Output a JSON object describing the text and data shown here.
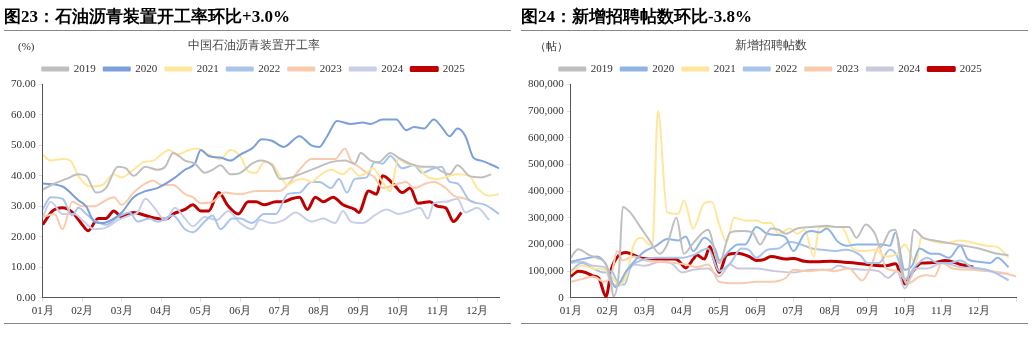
{
  "chart_data": [
    {
      "type": "line",
      "title": "图23：石油沥青装置开工率环比+3.0%",
      "subtitle": "中国石油沥青装置开工率",
      "ylabel": "(%)",
      "legend": "top",
      "marker": "none",
      "line_style": "solid",
      "grid": false,
      "xlim": [
        1,
        12.55
      ],
      "xticks": [
        {
          "value": 1,
          "label": "01月"
        },
        {
          "value": 2,
          "label": "02月"
        },
        {
          "value": 3,
          "label": "03月"
        },
        {
          "value": 4,
          "label": "04月"
        },
        {
          "value": 5,
          "label": "05月"
        },
        {
          "value": 6,
          "label": "06月"
        },
        {
          "value": 7,
          "label": "07月"
        },
        {
          "value": 8,
          "label": "08月"
        },
        {
          "value": 9,
          "label": "09月"
        },
        {
          "value": 10,
          "label": "10月"
        },
        {
          "value": 11,
          "label": "11月"
        },
        {
          "value": 12,
          "label": "12月"
        }
      ],
      "ylim": [
        0,
        70
      ],
      "yticks": [
        {
          "value": 0,
          "label": "0.00"
        },
        {
          "value": 10,
          "label": "10.00"
        },
        {
          "value": 20,
          "label": "20.00"
        },
        {
          "value": 30,
          "label": "30.00"
        },
        {
          "value": 40,
          "label": "40.00"
        },
        {
          "value": 50,
          "label": "50.00"
        },
        {
          "value": 60,
          "label": "60.00"
        },
        {
          "value": 70,
          "label": "70.00"
        }
      ],
      "series": [
        {
          "name": "2019",
          "color": "#bfbfbf",
          "x": [
            1,
            1.3,
            1.6,
            1.9,
            2.1,
            2.35,
            2.6,
            2.9,
            3.1,
            3.3,
            3.6,
            3.9,
            4.1,
            4.3,
            4.6,
            4.85,
            5.1,
            5.3,
            5.5,
            5.75,
            6,
            6.3,
            6.5,
            6.8,
            7,
            7.3,
            7.6,
            7.9,
            8.3,
            8.65,
            8.9,
            9.05,
            9.3,
            9.5,
            9.8,
            10,
            10.3,
            10.6,
            10.9,
            11.1,
            11.3,
            11.5,
            11.8,
            12.1,
            12.35
          ],
          "values": [
            35.5,
            37.5,
            39,
            40.5,
            40,
            34.5,
            36,
            43,
            42.5,
            40,
            43,
            42,
            43,
            47.5,
            45,
            44,
            41,
            42,
            43.5,
            40.5,
            41,
            44,
            45,
            43.5,
            39,
            39.5,
            41,
            42.5,
            44.5,
            45,
            44,
            47.5,
            45,
            44.5,
            47.5,
            46,
            44,
            43,
            43,
            41.5,
            40.5,
            43.5,
            40,
            39.5,
            40.5
          ]
        },
        {
          "name": "2020",
          "color": "#7b9fd9",
          "x": [
            1,
            1.5,
            1.9,
            2.1,
            2.3,
            2.5,
            2.8,
            3,
            3.3,
            3.6,
            3.9,
            4.3,
            4.6,
            4.85,
            5,
            5.2,
            5.5,
            5.75,
            6,
            6.3,
            6.55,
            6.8,
            7.1,
            7.5,
            7.8,
            8,
            8.2,
            8.45,
            8.8,
            9.1,
            9.3,
            9.6,
            9.95,
            10.2,
            10.4,
            10.65,
            10.9,
            11.1,
            11.3,
            11.5,
            11.7,
            11.9,
            12.1,
            12.55
          ],
          "values": [
            37.5,
            36.5,
            32,
            30,
            25,
            24.5,
            26,
            28,
            33,
            35,
            36,
            39,
            42,
            44,
            48.5,
            46.5,
            46,
            45,
            47,
            49,
            52,
            51.5,
            49.5,
            53,
            50,
            49.5,
            53,
            58,
            57,
            57.5,
            57,
            58.5,
            58.5,
            55,
            56,
            55.5,
            58.5,
            56,
            53,
            55.5,
            53,
            46,
            45,
            42.5
          ]
        },
        {
          "name": "2021",
          "color": "#ffe699",
          "x": [
            1,
            1.2,
            1.5,
            1.7,
            1.9,
            2.2,
            2.5,
            2.8,
            3,
            3.3,
            3.55,
            3.8,
            4,
            4.2,
            4.4,
            4.7,
            4.9,
            5.2,
            5.5,
            5.75,
            6,
            6.2,
            6.4,
            6.6,
            6.8,
            7,
            7.2,
            7.4,
            7.6,
            7.8,
            8,
            8.3,
            8.6,
            8.8,
            9,
            9.2,
            9.35,
            9.6,
            9.8,
            10,
            10.2,
            10.5,
            10.7,
            11,
            11.3,
            11.5,
            11.8,
            12,
            12.3,
            12.55
          ],
          "values": [
            47,
            45,
            45.5,
            45,
            40,
            36.5,
            37,
            40.5,
            39.5,
            42,
            44.5,
            45,
            47,
            48.5,
            47,
            48.5,
            49,
            47,
            45.5,
            48.5,
            46.5,
            41.5,
            41,
            44.5,
            44,
            40,
            37,
            38.5,
            39,
            38,
            40,
            42,
            40.5,
            42.5,
            40,
            41,
            42.5,
            38,
            35,
            45.5,
            44,
            43,
            40,
            39,
            40,
            40.5,
            40,
            36,
            33.5,
            34
          ]
        },
        {
          "name": "2022",
          "color": "#a9c4eb",
          "x": [
            1,
            1.2,
            1.5,
            1.75,
            1.9,
            2.1,
            2.3,
            2.6,
            2.9,
            3.2,
            3.4,
            3.7,
            3.9,
            4.3,
            4.6,
            4.8,
            5.1,
            5.3,
            5.5,
            5.8,
            6,
            6.3,
            6.6,
            6.9,
            7.2,
            7.5,
            7.8,
            8,
            8.3,
            8.5,
            8.7,
            8.9,
            9.2,
            9.4,
            9.6,
            9.8,
            10.1,
            10.4,
            10.6,
            10.9,
            11.1,
            11.3,
            11.5,
            11.8,
            12.2,
            12.55
          ],
          "values": [
            29,
            33,
            32.5,
            27,
            29.5,
            27.5,
            25.5,
            24,
            26.5,
            28,
            25,
            26,
            25,
            27,
            22.5,
            21.5,
            25,
            27,
            22.5,
            26,
            26,
            24.5,
            27.5,
            27.5,
            34,
            34.5,
            38,
            38,
            36,
            39,
            34.5,
            39,
            39.5,
            44.5,
            44,
            46.5,
            42.5,
            43.5,
            41,
            42.5,
            43,
            38,
            37.5,
            32,
            30.5,
            27.5
          ]
        },
        {
          "name": "2023",
          "color": "#f8cbad",
          "x": [
            1,
            1.3,
            1.5,
            1.75,
            2,
            2.3,
            2.6,
            2.8,
            3,
            3.3,
            3.6,
            3.8,
            4,
            4.3,
            4.6,
            4.8,
            5,
            5.3,
            5.6,
            6,
            6.4,
            6.8,
            7,
            7.2,
            7.5,
            7.8,
            8.1,
            8.4,
            8.65,
            8.8,
            9,
            9.2,
            9.4,
            9.6,
            9.9,
            10.2,
            10.4,
            10.7,
            10.9,
            11.2,
            11.4,
            11.7,
            12
          ],
          "values": [
            26.5,
            27.5,
            22.5,
            31.5,
            30,
            30,
            32,
            33,
            30.5,
            34.5,
            37.5,
            38.5,
            37,
            37,
            34,
            33,
            31,
            31.5,
            34.5,
            34,
            35,
            35,
            35,
            37,
            42,
            45.5,
            45.5,
            45.5,
            49,
            45,
            43,
            41,
            39.5,
            36,
            37,
            38,
            36,
            37.5,
            38,
            36,
            33.5,
            32.5,
            31
          ]
        },
        {
          "name": "2024",
          "color": "#c9cfe8",
          "x": [
            1,
            1.2,
            1.5,
            1.8,
            2,
            2.3,
            2.6,
            2.9,
            3.2,
            3.4,
            3.6,
            3.8,
            4.1,
            4.35,
            4.6,
            4.8,
            5.1,
            5.4,
            5.7,
            6,
            6.3,
            6.5,
            6.8,
            7.1,
            7.4,
            7.8,
            8.1,
            8.4,
            8.6,
            8.8,
            9.1,
            9.4,
            9.7,
            10,
            10.3,
            10.55,
            10.75,
            10.9,
            11.2,
            11.5,
            11.7,
            12,
            12.3
          ],
          "values": [
            26.5,
            31.5,
            27.5,
            27.5,
            25.5,
            22.5,
            23,
            25.5,
            27,
            28,
            32.5,
            30,
            25.5,
            29.5,
            26,
            23.5,
            26.5,
            25.5,
            28.5,
            24.5,
            22.5,
            25.5,
            24.5,
            25.5,
            28,
            25,
            26,
            24.5,
            28.5,
            25,
            24.5,
            27,
            29,
            27.5,
            28.5,
            29.5,
            26,
            31,
            31.5,
            32.5,
            28,
            29.5,
            25.5
          ]
        },
        {
          "name": "2025",
          "color": "#c00000",
          "x": [
            1,
            1.25,
            1.5,
            1.75,
            2,
            2.15,
            2.4,
            2.6,
            2.8,
            3,
            3.3,
            3.6,
            3.9,
            4.1,
            4.3,
            4.6,
            4.8,
            5,
            5.2,
            5.45,
            5.7,
            5.95,
            6.2,
            6.4,
            6.6,
            6.9,
            7.1,
            7.3,
            7.5,
            7.7,
            7.9,
            8.1,
            8.35,
            8.6,
            8.9,
            9,
            9.25,
            9.45,
            9.6,
            9.9,
            10.1,
            10.3,
            10.5,
            10.8,
            11,
            11.2,
            11.4,
            11.6
          ],
          "values": [
            24,
            28.5,
            29.5,
            28,
            24,
            22,
            26,
            26,
            28.5,
            26.5,
            28,
            27,
            26,
            25.8,
            27.5,
            29,
            30.5,
            28.5,
            28.5,
            34.5,
            30,
            27.5,
            31.5,
            31.5,
            30.5,
            31.5,
            31.5,
            32.5,
            33,
            29,
            33,
            31.5,
            33,
            30.5,
            29,
            28,
            35,
            34,
            40,
            37,
            34.5,
            36,
            31,
            31.5,
            30,
            29.5,
            25,
            28
          ]
        }
      ]
    },
    {
      "type": "line",
      "title": "图24：新增招聘帖数环比-3.8%",
      "subtitle": "新增招聘帖数",
      "ylabel": "（帖）",
      "legend": "top",
      "marker": "none",
      "line_style": "solid",
      "grid": false,
      "xlim": [
        1,
        13
      ],
      "xticks": [
        {
          "value": 1,
          "label": "01月"
        },
        {
          "value": 2,
          "label": "02月"
        },
        {
          "value": 3,
          "label": "03月"
        },
        {
          "value": 4,
          "label": "04月"
        },
        {
          "value": 5,
          "label": "05月"
        },
        {
          "value": 6,
          "label": "06月"
        },
        {
          "value": 7,
          "label": "07月"
        },
        {
          "value": 8,
          "label": "08月"
        },
        {
          "value": 9,
          "label": "09月"
        },
        {
          "value": 10,
          "label": "10月"
        },
        {
          "value": 11,
          "label": "11月"
        },
        {
          "value": 12,
          "label": "12月"
        },
        {
          "value": 13,
          "label": null
        }
      ],
      "ylim": [
        0,
        800000
      ],
      "yticks": [
        0,
        {
          "value": 100000,
          "label": "100,000"
        },
        {
          "value": 200000,
          "label": "200,000"
        },
        {
          "value": 300000,
          "label": "300,000"
        },
        {
          "value": 400000,
          "label": "400,000"
        },
        {
          "value": 500000,
          "label": "500,000"
        },
        {
          "value": 600000,
          "label": "600,000"
        },
        {
          "value": 700000,
          "label": "700,000"
        },
        {
          "value": 800000,
          "label": "800,000"
        }
      ],
      "series": [
        {
          "name": "2019",
          "color": "#bfbfbf",
          "x": [
            1,
            1.2,
            1.5,
            1.7,
            1.95,
            2.1,
            2.15,
            2.3,
            2.4,
            2.6,
            2.9,
            3.1,
            3.4,
            3.6,
            3.85,
            4.05,
            4.3,
            4.7,
            5,
            5.3,
            5.6,
            5.9,
            6.1,
            6.4,
            6.6,
            6.8,
            7.1,
            7.5,
            7.9,
            8.2,
            8.5,
            8.7,
            8.95,
            9.2,
            9.35,
            9.6,
            9.75,
            9.9,
            10.05,
            10.25,
            10.5,
            10.8,
            11.2,
            11.6,
            12,
            12.5,
            12.8
          ],
          "values": [
            150000,
            182000,
            160000,
            150000,
            125000,
            40000,
            5000,
            100000,
            340000,
            320000,
            260000,
            220000,
            165000,
            200000,
            300000,
            165000,
            205000,
            255000,
            130000,
            245000,
            250000,
            245000,
            200000,
            260000,
            255000,
            240000,
            260000,
            265000,
            270000,
            265000,
            265000,
            225000,
            275000,
            240000,
            190000,
            250000,
            255000,
            130000,
            50000,
            255000,
            225000,
            215000,
            205000,
            195000,
            185000,
            165000,
            160000
          ]
        },
        {
          "name": "2020",
          "color": "#8fb4e3",
          "x": [
            1,
            1.3,
            1.5,
            1.7,
            1.95,
            2.2,
            2.5,
            2.8,
            3,
            3.3,
            3.6,
            3.9,
            4.1,
            4.3,
            4.6,
            4.9,
            5,
            5.3,
            5.5,
            5.7,
            6,
            6.3,
            6.6,
            6.8,
            7,
            7.3,
            7.5,
            7.7,
            7.9,
            8.2,
            8.45,
            8.7,
            9,
            9.4,
            9.6,
            9.75,
            10,
            10.2,
            10.4,
            10.7,
            10.9,
            11.2,
            11.5,
            11.7,
            12,
            12.3,
            12.5,
            12.8
          ],
          "values": [
            135000,
            145000,
            150000,
            155000,
            125000,
            40000,
            100000,
            150000,
            175000,
            195000,
            220000,
            215000,
            230000,
            175000,
            225000,
            180000,
            140000,
            180000,
            200000,
            200000,
            265000,
            240000,
            235000,
            225000,
            175000,
            240000,
            250000,
            245000,
            260000,
            210000,
            195000,
            200000,
            200000,
            200000,
            195000,
            245000,
            105000,
            120000,
            185000,
            165000,
            165000,
            150000,
            195000,
            145000,
            135000,
            130000,
            150000,
            115000
          ]
        },
        {
          "name": "2021",
          "color": "#ffe699",
          "x": [
            1,
            1.3,
            1.6,
            1.9,
            2.1,
            2.3,
            2.5,
            2.7,
            2.9,
            3.1,
            3.2,
            3.35,
            3.6,
            3.9,
            4.05,
            4.3,
            4.6,
            4.8,
            5,
            5.2,
            5.4,
            5.7,
            6,
            6.2,
            6.4,
            6.6,
            6.9,
            7.1,
            7.3,
            7.55,
            7.7,
            8,
            8.3,
            8.6,
            8.9,
            9.2,
            9.5,
            9.8,
            10,
            10.3,
            10.45,
            10.8,
            11.1,
            11.5,
            11.9,
            12.2,
            12.5,
            12.8
          ],
          "values": [
            90000,
            120000,
            110000,
            105000,
            80000,
            50000,
            80000,
            200000,
            225000,
            200000,
            195000,
            700000,
            320000,
            315000,
            365000,
            260000,
            355000,
            360000,
            275000,
            210000,
            300000,
            290000,
            290000,
            280000,
            280000,
            240000,
            260000,
            240000,
            255000,
            155000,
            265000,
            265000,
            265000,
            185000,
            175000,
            180000,
            155000,
            165000,
            200000,
            130000,
            225000,
            210000,
            205000,
            215000,
            205000,
            195000,
            190000,
            150000
          ]
        },
        {
          "name": "2022",
          "color": "#a9c4eb",
          "x": [
            1,
            1.3,
            1.6,
            1.9,
            2.1,
            2.3,
            2.45,
            2.6,
            2.9,
            3.3,
            3.7,
            4,
            4.3,
            4.7,
            5,
            5.3,
            5.6,
            5.8,
            6,
            6.3,
            6.6,
            6.9,
            7.2,
            7.5,
            7.8,
            8.1,
            8.4,
            8.8,
            9,
            9.3,
            9.6,
            9.8,
            10,
            10.3,
            10.6,
            10.9,
            11.2,
            11.5,
            11.8,
            12.2,
            12.5,
            12.8
          ],
          "values": [
            100000,
            130000,
            110000,
            95000,
            100000,
            50000,
            50000,
            110000,
            140000,
            150000,
            150000,
            150000,
            160000,
            185000,
            100000,
            130000,
            185000,
            180000,
            150000,
            180000,
            185000,
            210000,
            200000,
            185000,
            180000,
            175000,
            180000,
            160000,
            130000,
            130000,
            180000,
            155000,
            70000,
            120000,
            150000,
            130000,
            130000,
            140000,
            115000,
            105000,
            90000,
            65000
          ]
        },
        {
          "name": "2023",
          "color": "#f8cbad",
          "x": [
            1,
            1.3,
            1.6,
            1.9,
            2.1,
            2.25,
            2.4,
            2.7,
            3,
            3.4,
            3.8,
            4.1,
            4.4,
            4.7,
            5,
            5.3,
            5.6,
            6,
            6.4,
            6.8,
            7,
            7.4,
            7.8,
            8.1,
            8.5,
            8.85,
            9.1,
            9.3,
            9.5,
            9.8,
            10.1,
            10.4,
            10.6,
            10.8,
            11,
            11.3,
            11.8,
            12.2,
            12.6,
            13
          ],
          "values": [
            60000,
            70000,
            80000,
            60000,
            90000,
            175000,
            140000,
            155000,
            140000,
            135000,
            130000,
            125000,
            115000,
            125000,
            60000,
            55000,
            55000,
            60000,
            60000,
            75000,
            105000,
            100000,
            105000,
            100000,
            110000,
            65000,
            120000,
            190000,
            110000,
            100000,
            55000,
            80000,
            85000,
            80000,
            130000,
            110000,
            105000,
            100000,
            95000,
            80000
          ]
        },
        {
          "name": "2024",
          "color": "#c9c9de",
          "x": [
            1,
            1.3,
            1.6,
            1.9,
            2.1,
            2.3,
            2.5,
            2.7,
            3,
            3.4,
            3.7,
            4,
            4.3,
            4.7,
            5,
            5.3,
            5.5,
            6,
            6.5,
            7,
            7.5,
            8,
            8.2,
            8.5,
            9,
            9.3,
            9.55,
            9.8,
            10,
            10.3,
            10.6,
            11,
            11.5,
            12,
            12.5,
            12.8
          ],
          "values": [
            130000,
            135000,
            120000,
            115000,
            55000,
            45000,
            100000,
            125000,
            120000,
            135000,
            130000,
            95000,
            105000,
            110000,
            80000,
            125000,
            110000,
            110000,
            100000,
            95000,
            105000,
            105000,
            120000,
            110000,
            105000,
            100000,
            75000,
            100000,
            35000,
            110000,
            110000,
            130000,
            115000,
            110000,
            95000,
            90000
          ]
        },
        {
          "name": "2025",
          "color": "#c00000",
          "x": [
            1,
            1.2,
            1.4,
            1.6,
            1.75,
            1.95,
            2.1,
            2.3,
            2.5,
            2.7,
            2.9,
            3.2,
            3.5,
            3.8,
            3.9,
            4.1,
            4.3,
            4.4,
            4.6,
            4.75,
            4.85,
            5,
            5.2,
            5.5,
            5.8,
            6,
            6.2,
            6.4,
            6.8,
            7,
            7.3,
            7.6,
            8,
            8.5,
            9,
            9.5,
            9.75,
            10,
            10.2,
            10.45,
            10.8,
            11.1,
            11.5,
            11.85
          ],
          "values": [
            80000,
            100000,
            95000,
            82000,
            75000,
            5000,
            110000,
            160000,
            170000,
            160000,
            148000,
            145000,
            145000,
            145000,
            140000,
            112000,
            145000,
            160000,
            145000,
            192000,
            150000,
            95000,
            160000,
            167000,
            155000,
            140000,
            143000,
            155000,
            145000,
            147000,
            137000,
            135000,
            137000,
            132000,
            125000,
            120000,
            128000,
            52000,
            95000,
            130000,
            132000,
            140000,
            125000,
            115000
          ]
        }
      ]
    }
  ]
}
